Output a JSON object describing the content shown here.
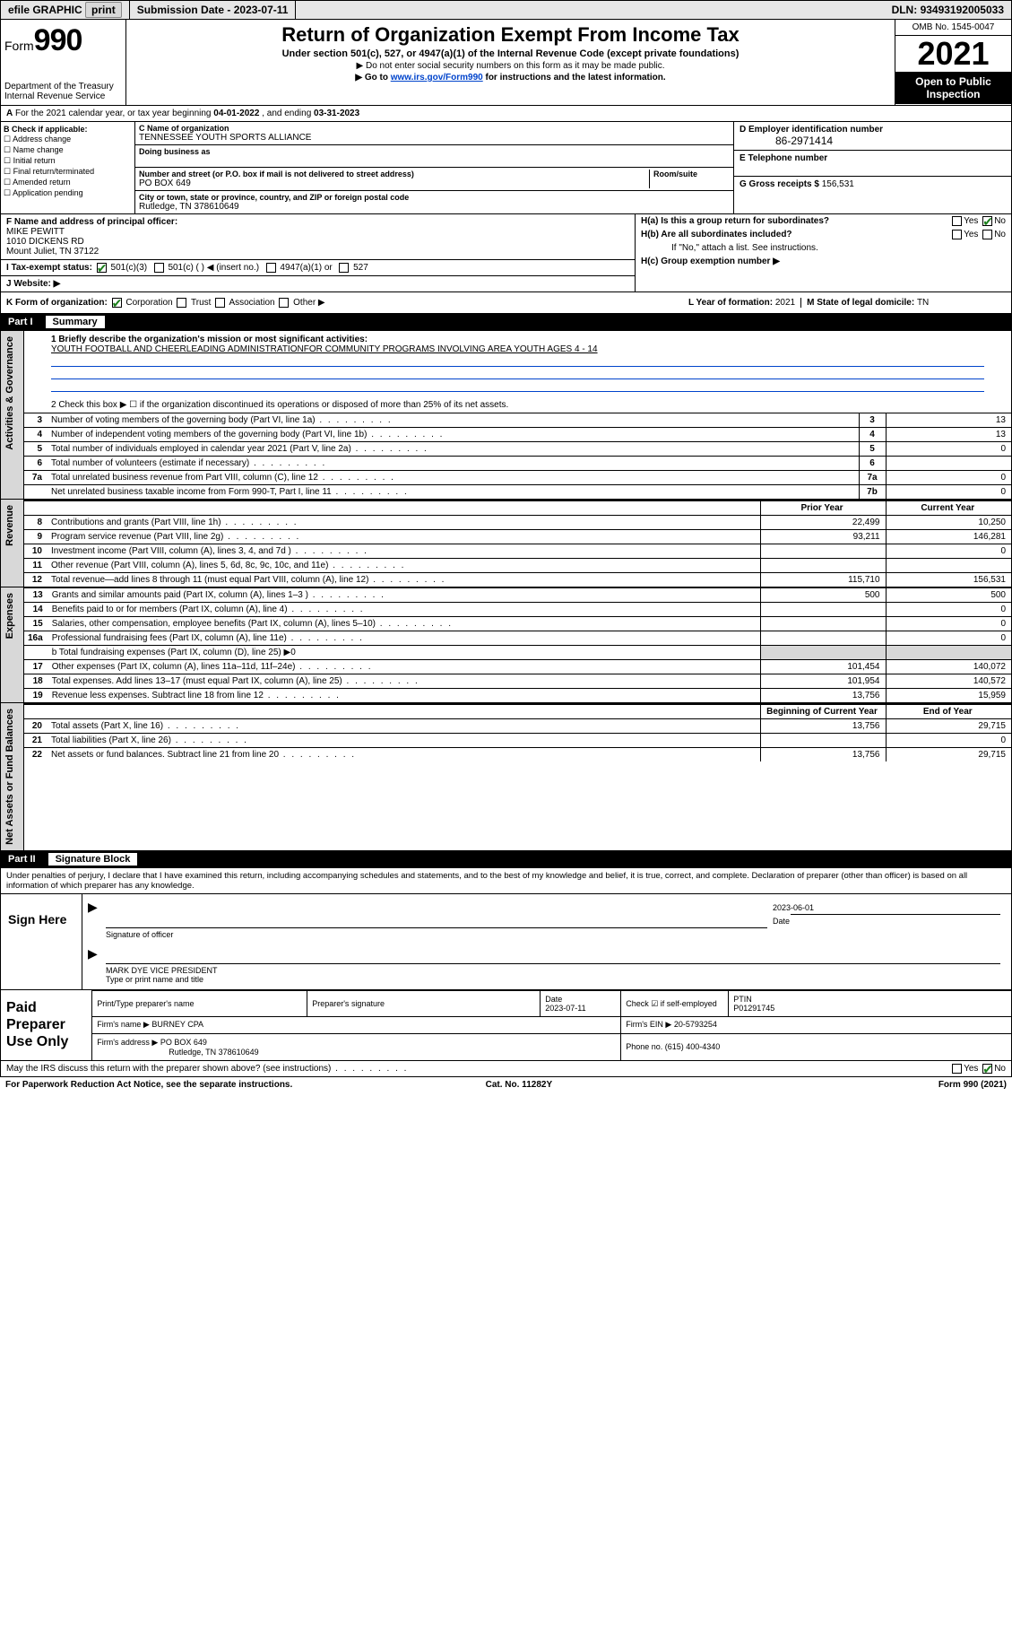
{
  "colors": {
    "bg": "#ffffff",
    "black": "#000000",
    "grey_bg": "#d8d8d8",
    "link": "#0044cc",
    "check_green": "#1a7f1a"
  },
  "topbar": {
    "efile": "efile GRAPHIC",
    "print": "print",
    "submission_label": "Submission Date - ",
    "submission_date": "2023-07-11",
    "dln_label": "DLN: ",
    "dln": "93493192005033"
  },
  "header": {
    "form_word": "Form",
    "form_num": "990",
    "dept": "Department of the Treasury",
    "irs": "Internal Revenue Service",
    "title": "Return of Organization Exempt From Income Tax",
    "subtitle": "Under section 501(c), 527, or 4947(a)(1) of the Internal Revenue Code (except private foundations)",
    "note1": "▶ Do not enter social security numbers on this form as it may be made public.",
    "note2_pre": "▶ Go to ",
    "note2_link": "www.irs.gov/Form990",
    "note2_post": " for instructions and the latest information.",
    "omb": "OMB No. 1545-0047",
    "year": "2021",
    "open": "Open to Public Inspection"
  },
  "line_a": {
    "text_pre": "For the 2021 calendar year, or tax year beginning ",
    "begin": "04-01-2022",
    "mid": " , and ending ",
    "end": "03-31-2023"
  },
  "box_b": {
    "label": "B Check if applicable:",
    "items": [
      "Address change",
      "Name change",
      "Initial return",
      "Final return/terminated",
      "Amended return",
      "Application pending"
    ]
  },
  "box_c": {
    "name_label": "C Name of organization",
    "name": "TENNESSEE YOUTH SPORTS ALLIANCE",
    "dba_label": "Doing business as",
    "addr_label": "Number and street (or P.O. box if mail is not delivered to street address)",
    "room_label": "Room/suite",
    "addr": "PO BOX 649",
    "city_label": "City or town, state or province, country, and ZIP or foreign postal code",
    "city": "Rutledge, TN  378610649"
  },
  "box_d": {
    "label": "D Employer identification number",
    "val": "86-2971414"
  },
  "box_e": {
    "label": "E Telephone number"
  },
  "box_g": {
    "label": "G Gross receipts $ ",
    "val": "156,531"
  },
  "box_f": {
    "label": "F Name and address of principal officer:",
    "name": "MIKE PEWITT",
    "addr1": "1010 DICKENS RD",
    "addr2": "Mount Juliet, TN  37122"
  },
  "box_h": {
    "ha": "H(a)  Is this a group return for subordinates?",
    "hb": "H(b)  Are all subordinates included?",
    "hnote": "If \"No,\" attach a list. See instructions.",
    "hc": "H(c)  Group exemption number ▶",
    "yes": "Yes",
    "no": "No"
  },
  "box_i": {
    "label": "I   Tax-exempt status:",
    "opts": [
      "501(c)(3)",
      "501(c) (    ) ◀ (insert no.)",
      "4947(a)(1) or",
      "527"
    ]
  },
  "box_j": {
    "label": "J   Website: ▶"
  },
  "box_k": {
    "label": "K Form of organization:",
    "opts": [
      "Corporation",
      "Trust",
      "Association",
      "Other ▶"
    ]
  },
  "box_l": {
    "label": "L Year of formation: ",
    "val": "2021"
  },
  "box_m": {
    "label": "M State of legal domicile: ",
    "val": "TN"
  },
  "part1": {
    "part": "Part I",
    "title": "Summary",
    "q1_label": "1   Briefly describe the organization's mission or most significant activities:",
    "q1_text": "YOUTH FOOTBALL AND CHEERLEADING ADMINISTRATIONFOR COMMUNITY PROGRAMS INVOLVING AREA YOUTH AGES 4 - 14",
    "q2": "2   Check this box ▶ ☐  if the organization discontinued its operations or disposed of more than 25% of its net assets.",
    "gov_rows": [
      {
        "n": "3",
        "t": "Number of voting members of the governing body (Part VI, line 1a)",
        "c": "3",
        "v": "13"
      },
      {
        "n": "4",
        "t": "Number of independent voting members of the governing body (Part VI, line 1b)",
        "c": "4",
        "v": "13"
      },
      {
        "n": "5",
        "t": "Total number of individuals employed in calendar year 2021 (Part V, line 2a)",
        "c": "5",
        "v": "0"
      },
      {
        "n": "6",
        "t": "Total number of volunteers (estimate if necessary)",
        "c": "6",
        "v": ""
      },
      {
        "n": "7a",
        "t": "Total unrelated business revenue from Part VIII, column (C), line 12",
        "c": "7a",
        "v": "0"
      },
      {
        "n": "",
        "t": "Net unrelated business taxable income from Form 990-T, Part I, line 11",
        "c": "7b",
        "v": "0"
      }
    ],
    "col_prior": "Prior Year",
    "col_current": "Current Year",
    "rev_rows": [
      {
        "n": "8",
        "t": "Contributions and grants (Part VIII, line 1h)",
        "p": "22,499",
        "c": "10,250"
      },
      {
        "n": "9",
        "t": "Program service revenue (Part VIII, line 2g)",
        "p": "93,211",
        "c": "146,281"
      },
      {
        "n": "10",
        "t": "Investment income (Part VIII, column (A), lines 3, 4, and 7d )",
        "p": "",
        "c": "0"
      },
      {
        "n": "11",
        "t": "Other revenue (Part VIII, column (A), lines 5, 6d, 8c, 9c, 10c, and 11e)",
        "p": "",
        "c": ""
      },
      {
        "n": "12",
        "t": "Total revenue—add lines 8 through 11 (must equal Part VIII, column (A), line 12)",
        "p": "115,710",
        "c": "156,531"
      }
    ],
    "exp_rows": [
      {
        "n": "13",
        "t": "Grants and similar amounts paid (Part IX, column (A), lines 1–3 )",
        "p": "500",
        "c": "500"
      },
      {
        "n": "14",
        "t": "Benefits paid to or for members (Part IX, column (A), line 4)",
        "p": "",
        "c": "0"
      },
      {
        "n": "15",
        "t": "Salaries, other compensation, employee benefits (Part IX, column (A), lines 5–10)",
        "p": "",
        "c": "0"
      },
      {
        "n": "16a",
        "t": "Professional fundraising fees (Part IX, column (A), line 11e)",
        "p": "",
        "c": "0"
      }
    ],
    "exp_b": "b  Total fundraising expenses (Part IX, column (D), line 25) ▶0",
    "exp_rows2": [
      {
        "n": "17",
        "t": "Other expenses (Part IX, column (A), lines 11a–11d, 11f–24e)",
        "p": "101,454",
        "c": "140,072"
      },
      {
        "n": "18",
        "t": "Total expenses. Add lines 13–17 (must equal Part IX, column (A), line 25)",
        "p": "101,954",
        "c": "140,572"
      },
      {
        "n": "19",
        "t": "Revenue less expenses. Subtract line 18 from line 12",
        "p": "13,756",
        "c": "15,959"
      }
    ],
    "col_begin": "Beginning of Current Year",
    "col_end": "End of Year",
    "na_rows": [
      {
        "n": "20",
        "t": "Total assets (Part X, line 16)",
        "p": "13,756",
        "c": "29,715"
      },
      {
        "n": "21",
        "t": "Total liabilities (Part X, line 26)",
        "p": "",
        "c": "0"
      },
      {
        "n": "22",
        "t": "Net assets or fund balances. Subtract line 21 from line 20",
        "p": "13,756",
        "c": "29,715"
      }
    ],
    "side_gov": "Activities & Governance",
    "side_rev": "Revenue",
    "side_exp": "Expenses",
    "side_na": "Net Assets or Fund Balances"
  },
  "part2": {
    "part": "Part II",
    "title": "Signature Block",
    "perjury": "Under penalties of perjury, I declare that I have examined this return, including accompanying schedules and statements, and to the best of my knowledge and belief, it is true, correct, and complete. Declaration of preparer (other than officer) is based on all information of which preparer has any knowledge.",
    "sign_here": "Sign Here",
    "sig_officer": "Signature of officer",
    "sig_date_lbl": "Date",
    "sig_date": "2023-06-01",
    "officer_name": "MARK DYE  VICE PRESIDENT",
    "officer_type": "Type or print name and title",
    "paid": "Paid Preparer Use Only",
    "prep_name_lbl": "Print/Type preparer's name",
    "prep_sig_lbl": "Preparer's signature",
    "prep_date_lbl": "Date",
    "prep_date": "2023-07-11",
    "prep_check": "Check ☑ if self-employed",
    "ptin_lbl": "PTIN",
    "ptin": "P01291745",
    "firm_name_lbl": "Firm's name    ▶ ",
    "firm_name": "BURNEY CPA",
    "firm_ein_lbl": "Firm's EIN ▶ ",
    "firm_ein": "20-5793254",
    "firm_addr_lbl": "Firm's address ▶ ",
    "firm_addr": "PO BOX 649",
    "firm_city": "Rutledge, TN  378610649",
    "phone_lbl": "Phone no. ",
    "phone": "(615) 400-4340",
    "discuss": "May the IRS discuss this return with the preparer shown above? (see instructions)",
    "paperwork": "For Paperwork Reduction Act Notice, see the separate instructions.",
    "catno": "Cat. No. 11282Y",
    "formfoot": "Form 990 (2021)"
  }
}
